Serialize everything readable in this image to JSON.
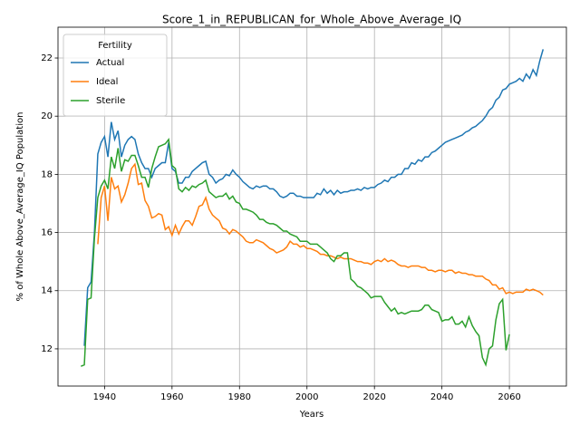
{
  "chart_data": {
    "type": "line",
    "title": "Score_1_in_REPUBLICAN_for_Whole_Above_Average_IQ",
    "x_label": "Years",
    "y_label": "% of Whole Above_Average_IQ Population",
    "legend_title": "Fertility",
    "legend": "upper left",
    "grid": true,
    "xlim": [
      1926.2,
      2076.9
    ],
    "ylim": [
      10.72,
      23.06
    ],
    "xticks": [
      1940,
      1960,
      1980,
      2000,
      2020,
      2040,
      2060
    ],
    "yticks": [
      12,
      14,
      16,
      18,
      20,
      22
    ],
    "x": [
      1933,
      1934,
      1935,
      1936,
      1937,
      1938,
      1939,
      1940,
      1941,
      1942,
      1943,
      1944,
      1945,
      1946,
      1947,
      1948,
      1949,
      1950,
      1951,
      1952,
      1953,
      1954,
      1955,
      1956,
      1957,
      1958,
      1959,
      1960,
      1961,
      1962,
      1963,
      1964,
      1965,
      1966,
      1967,
      1968,
      1969,
      1970,
      1971,
      1972,
      1973,
      1974,
      1975,
      1976,
      1977,
      1978,
      1979,
      1980,
      1981,
      1982,
      1983,
      1984,
      1985,
      1986,
      1987,
      1988,
      1989,
      1990,
      1991,
      1992,
      1993,
      1994,
      1995,
      1996,
      1997,
      1998,
      1999,
      2000,
      2001,
      2002,
      2003,
      2004,
      2005,
      2006,
      2007,
      2008,
      2009,
      2010,
      2011,
      2012,
      2013,
      2014,
      2015,
      2016,
      2017,
      2018,
      2019,
      2020,
      2021,
      2022,
      2023,
      2024,
      2025,
      2026,
      2027,
      2028,
      2029,
      2030,
      2031,
      2032,
      2033,
      2034,
      2035,
      2036,
      2037,
      2038,
      2039,
      2040,
      2041,
      2042,
      2043,
      2044,
      2045,
      2046,
      2047,
      2048,
      2049,
      2050,
      2051,
      2052,
      2053,
      2054,
      2055,
      2056,
      2057,
      2058,
      2059,
      2060,
      2061,
      2062,
      2063,
      2064,
      2065,
      2066,
      2067,
      2068,
      2069,
      2070
    ],
    "series": [
      {
        "name": "Actual",
        "color": "#1f77b4",
        "values": [
          null,
          12.1,
          14.1,
          14.3,
          16.0,
          18.7,
          19.1,
          19.3,
          18.6,
          19.8,
          19.2,
          19.5,
          18.6,
          19.0,
          19.2,
          19.3,
          19.2,
          18.7,
          18.4,
          18.2,
          18.2,
          17.9,
          18.2,
          18.3,
          18.4,
          18.4,
          19.1,
          18.2,
          18.1,
          17.7,
          17.7,
          17.9,
          17.9,
          18.1,
          18.2,
          18.3,
          18.4,
          18.45,
          18.0,
          17.9,
          17.7,
          17.8,
          17.85,
          18.0,
          17.95,
          18.15,
          18.0,
          17.9,
          17.75,
          17.65,
          17.55,
          17.5,
          17.6,
          17.55,
          17.6,
          17.6,
          17.5,
          17.5,
          17.4,
          17.25,
          17.2,
          17.25,
          17.35,
          17.35,
          17.25,
          17.25,
          17.2,
          17.2,
          17.2,
          17.2,
          17.35,
          17.3,
          17.5,
          17.35,
          17.45,
          17.3,
          17.45,
          17.35,
          17.4,
          17.4,
          17.45,
          17.45,
          17.5,
          17.45,
          17.55,
          17.5,
          17.55,
          17.55,
          17.65,
          17.7,
          17.8,
          17.75,
          17.9,
          17.9,
          18.0,
          18.0,
          18.2,
          18.2,
          18.4,
          18.35,
          18.5,
          18.45,
          18.6,
          18.6,
          18.75,
          18.8,
          18.9,
          19.0,
          19.1,
          19.15,
          19.2,
          19.25,
          19.3,
          19.35,
          19.45,
          19.5,
          19.6,
          19.65,
          19.75,
          19.85,
          20.0,
          20.2,
          20.3,
          20.55,
          20.65,
          20.9,
          20.95,
          21.1,
          21.15,
          21.2,
          21.3,
          21.2,
          21.45,
          21.3,
          21.6,
          21.4,
          21.9,
          22.3
        ]
      },
      {
        "name": "Ideal",
        "color": "#ff7f0e",
        "values": [
          null,
          null,
          null,
          null,
          null,
          15.6,
          17.2,
          17.6,
          16.4,
          17.9,
          17.5,
          17.6,
          17.05,
          17.3,
          17.7,
          18.2,
          18.35,
          17.65,
          17.7,
          17.1,
          16.9,
          16.5,
          16.55,
          16.65,
          16.6,
          16.1,
          16.2,
          15.9,
          16.25,
          15.95,
          16.2,
          16.4,
          16.4,
          16.25,
          16.55,
          16.9,
          16.95,
          17.2,
          16.8,
          16.6,
          16.5,
          16.4,
          16.15,
          16.1,
          15.95,
          16.1,
          16.05,
          15.95,
          15.85,
          15.7,
          15.65,
          15.65,
          15.75,
          15.7,
          15.65,
          15.55,
          15.45,
          15.4,
          15.3,
          15.35,
          15.4,
          15.5,
          15.7,
          15.6,
          15.6,
          15.5,
          15.55,
          15.45,
          15.45,
          15.4,
          15.35,
          15.25,
          15.25,
          15.2,
          15.2,
          15.15,
          15.1,
          15.15,
          15.1,
          15.1,
          15.1,
          15.05,
          15.0,
          15.0,
          14.95,
          14.95,
          14.9,
          15.0,
          15.05,
          15.0,
          15.1,
          15.0,
          15.05,
          15.0,
          14.9,
          14.85,
          14.85,
          14.8,
          14.85,
          14.85,
          14.85,
          14.8,
          14.8,
          14.7,
          14.7,
          14.65,
          14.7,
          14.7,
          14.65,
          14.7,
          14.7,
          14.6,
          14.65,
          14.6,
          14.6,
          14.55,
          14.55,
          14.5,
          14.5,
          14.5,
          14.4,
          14.35,
          14.2,
          14.2,
          14.05,
          14.1,
          13.9,
          13.95,
          13.9,
          13.95,
          13.95,
          13.95,
          14.05,
          14.0,
          14.05,
          14.0,
          13.95,
          13.85
        ]
      },
      {
        "name": "Sterile",
        "color": "#2ca02c",
        "values": [
          11.4,
          11.45,
          13.7,
          13.75,
          15.8,
          17.2,
          17.6,
          17.8,
          17.5,
          18.6,
          18.2,
          18.9,
          18.1,
          18.5,
          18.45,
          18.65,
          18.65,
          18.3,
          17.9,
          17.9,
          17.55,
          18.2,
          18.6,
          18.95,
          19.0,
          19.05,
          19.2,
          18.3,
          18.2,
          17.5,
          17.4,
          17.55,
          17.45,
          17.6,
          17.55,
          17.65,
          17.7,
          17.8,
          17.4,
          17.3,
          17.2,
          17.25,
          17.25,
          17.35,
          17.15,
          17.25,
          17.05,
          17.0,
          16.8,
          16.8,
          16.75,
          16.7,
          16.6,
          16.45,
          16.45,
          16.35,
          16.3,
          16.3,
          16.25,
          16.15,
          16.05,
          16.05,
          15.95,
          15.9,
          15.85,
          15.7,
          15.7,
          15.7,
          15.6,
          15.6,
          15.6,
          15.5,
          15.4,
          15.3,
          15.1,
          15.0,
          15.2,
          15.2,
          15.3,
          15.3,
          14.4,
          14.3,
          14.15,
          14.1,
          14.0,
          13.9,
          13.75,
          13.8,
          13.8,
          13.8,
          13.6,
          13.45,
          13.3,
          13.4,
          13.2,
          13.25,
          13.2,
          13.25,
          13.3,
          13.3,
          13.3,
          13.35,
          13.5,
          13.5,
          13.35,
          13.3,
          13.25,
          12.95,
          13.0,
          13.0,
          13.1,
          12.85,
          12.85,
          12.95,
          12.75,
          13.1,
          12.8,
          12.6,
          12.45,
          11.7,
          11.45,
          12.0,
          12.1,
          13.0,
          13.55,
          13.7,
          11.95,
          12.5,
          null,
          null,
          null,
          null,
          null,
          null,
          null,
          null,
          null,
          null
        ]
      }
    ]
  }
}
